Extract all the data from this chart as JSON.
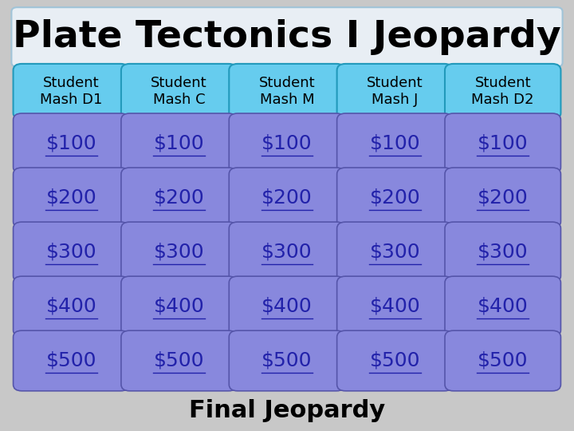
{
  "title": "Plate Tectonics I Jeopardy",
  "title_fontsize": 34,
  "title_bg": "#e8eef4",
  "title_border": "#a0c4d8",
  "bg_color": "#c8c8c8",
  "categories": [
    "Student\nMash D1",
    "Student\nMash C",
    "Student\nMash M",
    "Student\nMash J",
    "Student\nMash D2"
  ],
  "cat_bg": "#66ccee",
  "cat_border": "#2299bb",
  "cat_fontsize": 13,
  "money_rows": [
    "$100",
    "$200",
    "$300",
    "$400",
    "$500"
  ],
  "money_bg": "#8888dd",
  "money_border": "#5555aa",
  "money_text_color": "#2222aa",
  "money_fontsize": 18,
  "final_text": "Final Jeopardy",
  "final_fontsize": 22,
  "n_cols": 5,
  "n_rows": 5
}
